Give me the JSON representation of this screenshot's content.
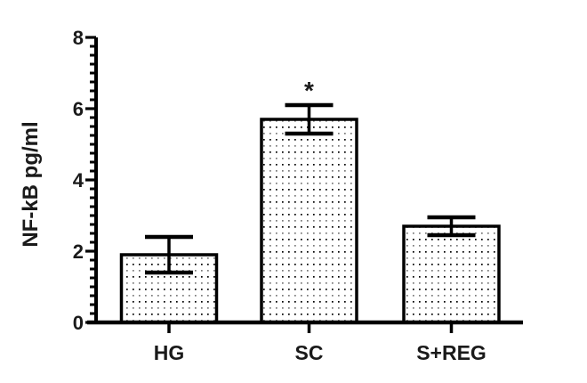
{
  "chart_data": {
    "type": "bar",
    "title": "",
    "xlabel": "",
    "ylabel": "NF-kB pg/ml",
    "categories": [
      "HG",
      "SC",
      "S+REG"
    ],
    "values": [
      1.9,
      5.7,
      2.7
    ],
    "errors": [
      0.5,
      0.4,
      0.25
    ],
    "significance": [
      "",
      "*",
      ""
    ],
    "ylim": [
      0,
      8
    ],
    "yticks": [
      0,
      2,
      4,
      6,
      8
    ],
    "minor_tick_step": 0.25,
    "grid": false,
    "legend": null,
    "bar_fill": "stippled-dot-pattern",
    "colors": {
      "outline": "#000000",
      "background": "#ffffff",
      "dot_dark": "#000000",
      "dot_light": "#7a7a7a"
    }
  }
}
